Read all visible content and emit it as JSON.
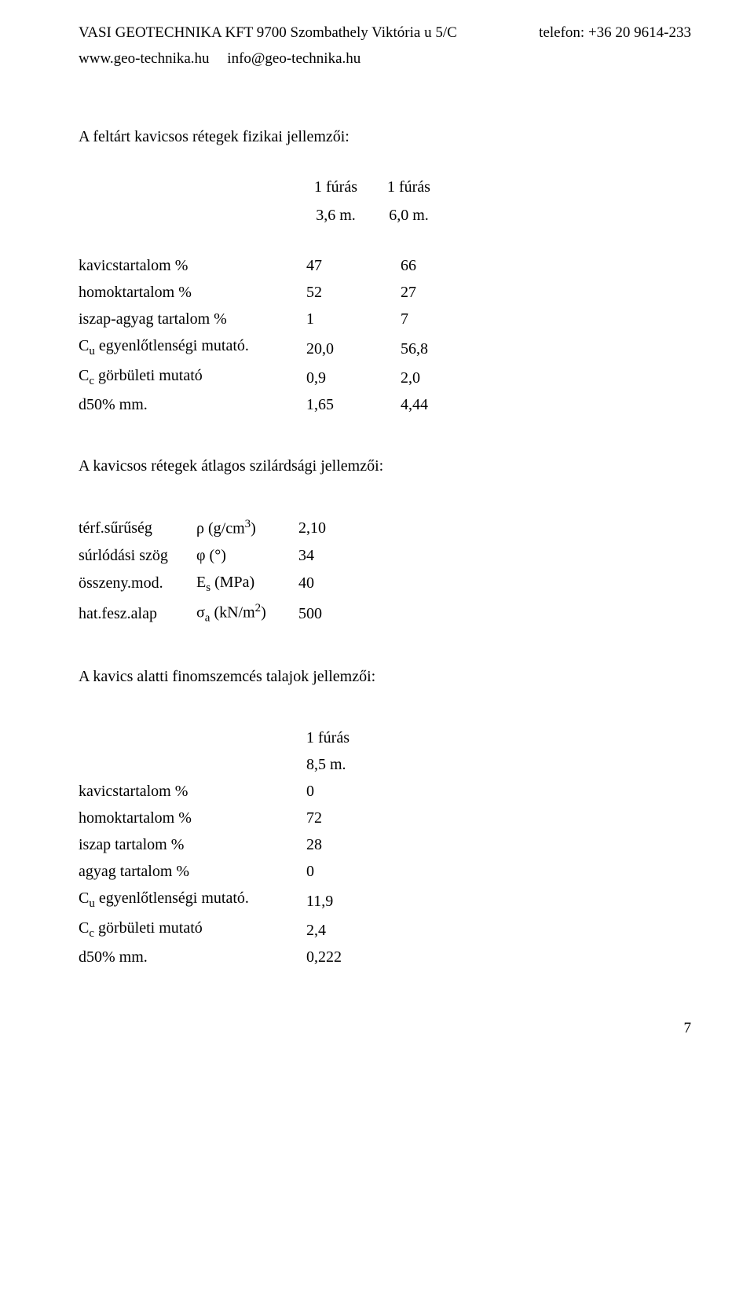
{
  "header": {
    "company": "VASI GEOTECHNIKA KFT 9700 Szombathely Viktória u 5/C",
    "phone": "telefon: +36 20 9614-233",
    "website": "www.geo-technika.hu",
    "email": "info@geo-technika.hu"
  },
  "section1": {
    "title": "A feltárt kavicsos rétegek fizikai jellemzői:",
    "col_headers": {
      "c1": "1 fúrás",
      "c2": "1 fúrás"
    },
    "depth_row": {
      "c1": "3,6 m.",
      "c2": "6,0 m."
    },
    "rows": {
      "kavics": {
        "label": "kavicstartalom %",
        "v1": "47",
        "v2": "66"
      },
      "homok": {
        "label": "homoktartalom %",
        "v1": "52",
        "v2": "27"
      },
      "iszap": {
        "label": "iszap-agyag tartalom %",
        "v1": "1",
        "v2": "7"
      },
      "cu": {
        "label_pre": "C",
        "label_sub": "u",
        "label_post": " egyenlőtlenségi mutató.",
        "v1": "20,0",
        "v2": "56,8"
      },
      "cc": {
        "label_pre": "C",
        "label_sub": "c",
        "label_post": " görbületi mutató",
        "v1": "0,9",
        "v2": "2,0"
      },
      "d50": {
        "label": "d50% mm.",
        "v1": "1,65",
        "v2": "4,44"
      }
    }
  },
  "section2": {
    "title": "A kavicsos rétegek átlagos szilárdsági jellemzői:",
    "rows": {
      "density": {
        "label": "térf.sűrűség",
        "sym_pre": "ρ (g/cm",
        "sym_sup": "3",
        "sym_post": ")",
        "val": "2,10"
      },
      "friction": {
        "label": "súrlódási szög",
        "sym": "φ (°)",
        "val": "34"
      },
      "modulus": {
        "label": "összeny.mod.",
        "sym_pre": "E",
        "sym_sub": "s",
        "sym_post": " (MPa)",
        "val": "40"
      },
      "sigma": {
        "label": "hat.fesz.alap",
        "sym_pre": "σ",
        "sym_sub": "a",
        "sym_mid": " (kN/m",
        "sym_sup": "2",
        "sym_post": ")",
        "val": "500"
      }
    }
  },
  "section3": {
    "title": "A kavics alatti finomszemcés talajok jellemzői:",
    "col_header": "1 fúrás",
    "depth": "8,5 m.",
    "rows": {
      "kavics": {
        "label": "kavicstartalom %",
        "v": "0"
      },
      "homok": {
        "label": "homoktartalom %",
        "v": "72"
      },
      "iszap": {
        "label": "iszap tartalom %",
        "v": "28"
      },
      "agyag": {
        "label": "agyag tartalom %",
        "v": "0"
      },
      "cu": {
        "label_pre": "C",
        "label_sub": "u",
        "label_post": " egyenlőtlenségi mutató.",
        "v": "11,9"
      },
      "cc": {
        "label_pre": "C",
        "label_sub": "c",
        "label_post": " görbületi mutató",
        "v": "2,4"
      },
      "d50": {
        "label": "d50% mm.",
        "v": "0,222"
      }
    }
  },
  "page_number": "7"
}
